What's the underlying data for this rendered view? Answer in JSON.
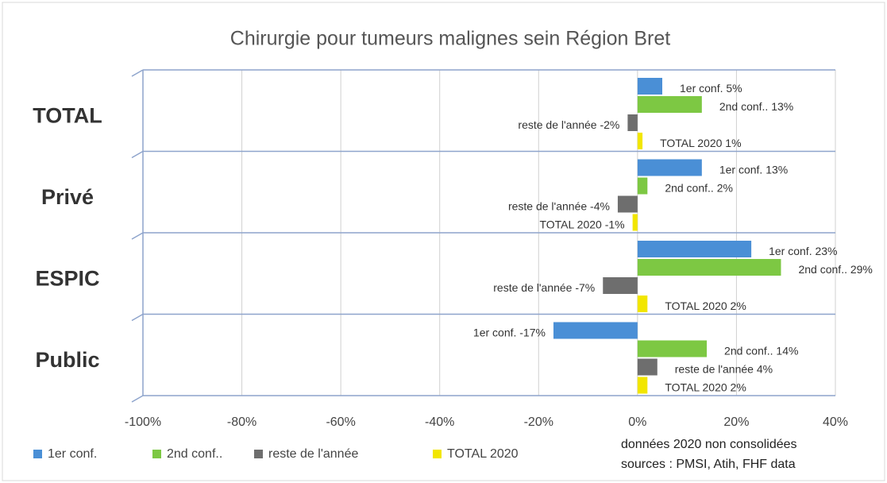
{
  "chart_data": {
    "type": "bar",
    "orientation": "horizontal",
    "title": "Chirurgie pour tumeurs malignes sein  Région Bret",
    "categories": [
      "TOTAL",
      "Privé",
      "ESPIC",
      "Public"
    ],
    "series": [
      {
        "name": "1er conf.",
        "color": "#4a8fd6",
        "values": [
          5,
          13,
          23,
          -17
        ],
        "value_labels": [
          "1er conf. 5%",
          "1er conf. 13%",
          "1er conf. 23%",
          "1er conf. -17%"
        ]
      },
      {
        "name": "2nd conf..",
        "color": "#7dc843",
        "values": [
          13,
          2,
          29,
          14
        ],
        "value_labels": [
          "2nd conf.. 13%",
          "2nd conf.. 2%",
          "2nd conf.. 29%",
          "2nd conf.. 14%"
        ]
      },
      {
        "name": "reste de  l'année",
        "color": "#6e6e6e",
        "values": [
          -2,
          -4,
          -7,
          4
        ],
        "value_labels": [
          "reste de  l'année -2%",
          "reste de  l'année -4%",
          "reste de  l'année -7%",
          "reste de  l'année 4%"
        ]
      },
      {
        "name": "TOTAL 2020",
        "color": "#f2e600",
        "values": [
          1,
          -1,
          2,
          2
        ],
        "value_labels": [
          "TOTAL  2020 1%",
          "TOTAL  2020 -1%",
          "TOTAL  2020 2%",
          "TOTAL  2020 2%"
        ]
      }
    ],
    "xlim": [
      -100,
      40
    ],
    "xticks": [
      {
        "value": -100,
        "label": "-100%"
      },
      {
        "value": -80,
        "label": "-80%"
      },
      {
        "value": -60,
        "label": "-60%"
      },
      {
        "value": -40,
        "label": "-40%"
      },
      {
        "value": -20,
        "label": "-20%"
      },
      {
        "value": 0,
        "label": "0%"
      },
      {
        "value": 20,
        "label": "20%"
      },
      {
        "value": 40,
        "label": "40%"
      }
    ],
    "grid": true,
    "legend": "bottom-left",
    "notes": [
      "données 2020 non consolidées",
      "sources : PMSI, Atih, FHF data"
    ]
  }
}
